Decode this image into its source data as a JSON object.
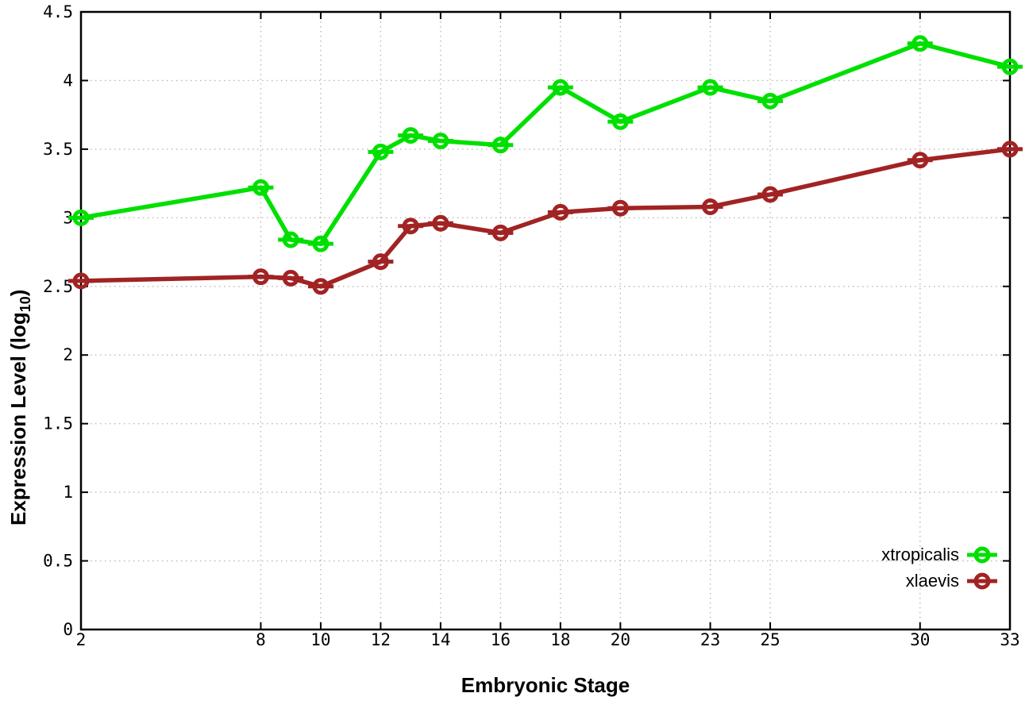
{
  "figure": {
    "background": "#ffffff",
    "x_axis": {
      "title": "Embryonic Stage",
      "tick_labels": [
        "2",
        "8",
        "10",
        "12",
        "14",
        "16",
        "18",
        "20",
        "23",
        "25",
        "30",
        "33"
      ]
    },
    "y_axis": {
      "title_main": "Expression Level (log",
      "title_sub": "10",
      "title_close": ")",
      "tick_labels": [
        "0",
        "0.5",
        "1",
        "1.5",
        "2",
        "2.5",
        "3",
        "3.5",
        "4",
        "4.5"
      ]
    },
    "legend": {
      "entries": [
        "xtropicalis",
        "xlaevis"
      ],
      "position": "inside bottom-right"
    }
  },
  "chart_data": {
    "type": "line",
    "title": "",
    "xlabel": "Embryonic Stage",
    "ylabel": "Expression Level (log10)",
    "x": [
      2,
      8,
      9,
      10,
      12,
      13,
      14,
      16,
      18,
      20,
      23,
      25,
      30,
      33
    ],
    "series": [
      {
        "name": "xtropicalis",
        "color": "#00e000",
        "values": [
          3.0,
          3.22,
          2.84,
          2.81,
          3.48,
          3.6,
          3.56,
          3.53,
          3.95,
          3.7,
          3.95,
          3.85,
          4.27,
          4.1
        ]
      },
      {
        "name": "xlaevis",
        "color": "#a12323",
        "values": [
          2.54,
          2.57,
          2.56,
          2.5,
          2.68,
          2.94,
          2.96,
          2.89,
          3.04,
          3.07,
          3.08,
          3.17,
          3.42,
          3.5
        ]
      }
    ],
    "xticks": [
      2,
      8,
      10,
      12,
      14,
      16,
      18,
      20,
      23,
      25,
      30,
      33
    ],
    "yticks": [
      0,
      0.5,
      1,
      1.5,
      2,
      2.5,
      3,
      3.5,
      4,
      4.5
    ],
    "xlim": [
      2,
      33
    ],
    "ylim": [
      0,
      4.5
    ],
    "grid": true,
    "grid_style": "dotted",
    "legend_position": "inside bottom-right",
    "marker": "open-circle-with-dash"
  }
}
